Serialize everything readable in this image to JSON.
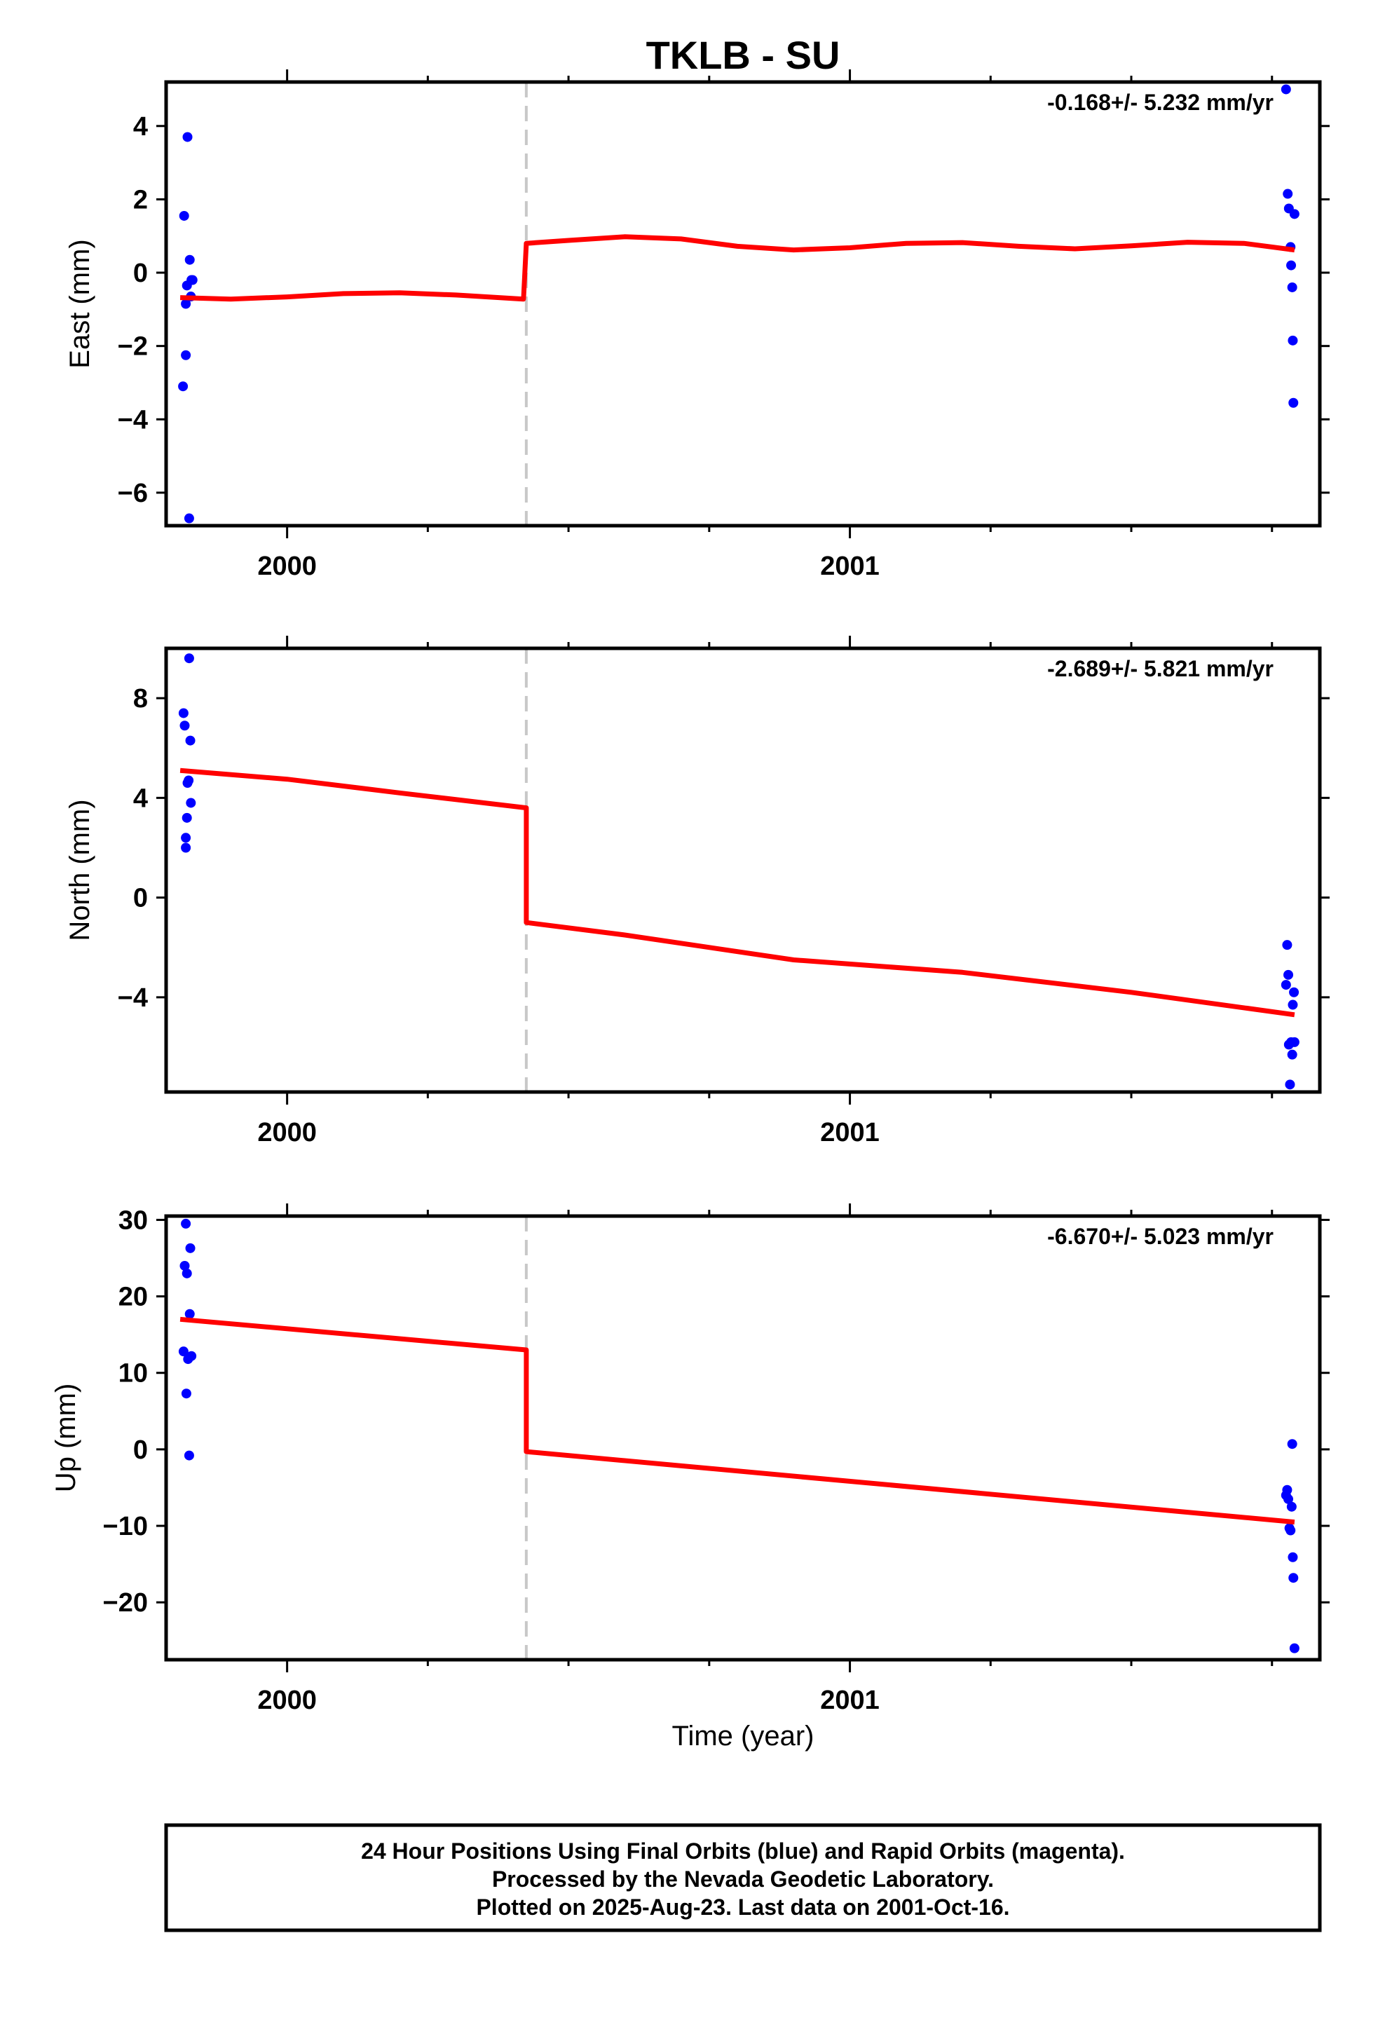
{
  "title": "TKLB - SU",
  "colors": {
    "data": "#0000ff",
    "model": "#ff0000",
    "break": "#c8c8c8",
    "frame": "#000000"
  },
  "chart_data": [
    {
      "type": "scatter",
      "ylabel": "East (mm)",
      "xlabel": "",
      "rate_text": "-0.168+/- 5.232 mm/yr",
      "xlim": [
        1999.785,
        2001.835
      ],
      "ylim": [
        -6.9,
        5.2
      ],
      "yticks": [
        -6,
        -4,
        -2,
        0,
        2,
        4
      ],
      "ytick_labels": [
        "−6",
        "−4",
        "−2",
        "0",
        "2",
        "4"
      ],
      "xticks": [
        2000,
        2001
      ],
      "xtick_labels": [
        "2000",
        "2001"
      ],
      "minor_xticks": [
        2000.25,
        2000.5,
        2000.75,
        2001.25,
        2001.5,
        2001.75
      ],
      "break_x": 2000.425,
      "series": [
        {
          "kind": "points",
          "x": [
            1999.815,
            1999.817,
            1999.82,
            1999.82,
            1999.822,
            1999.823,
            1999.826,
            1999.827,
            1999.829,
            1999.83,
            1999.832
          ],
          "y": [
            -3.1,
            1.55,
            -0.85,
            -2.25,
            -0.35,
            3.7,
            -6.7,
            0.35,
            -0.65,
            -0.2,
            -0.2
          ]
        },
        {
          "kind": "points",
          "x": [
            2001.775,
            2001.778,
            2001.78,
            2001.783,
            2001.784,
            2001.786,
            2001.787,
            2001.788,
            2001.79
          ],
          "y": [
            5.0,
            2.15,
            1.75,
            0.7,
            0.2,
            -0.4,
            -1.85,
            -3.55,
            1.6
          ]
        },
        {
          "kind": "model",
          "x": [
            1999.81,
            1999.9,
            2000.0,
            2000.1,
            2000.2,
            2000.3,
            2000.42,
            2000.425,
            2000.5,
            2000.6,
            2000.7,
            2000.8,
            2000.9,
            2001.0,
            2001.1,
            2001.2,
            2001.3,
            2001.4,
            2001.5,
            2001.6,
            2001.7,
            2001.79
          ],
          "y": [
            -0.68,
            -0.72,
            -0.66,
            -0.57,
            -0.55,
            -0.61,
            -0.72,
            0.8,
            0.88,
            0.98,
            0.92,
            0.72,
            0.62,
            0.68,
            0.8,
            0.82,
            0.72,
            0.65,
            0.73,
            0.83,
            0.8,
            0.62
          ]
        }
      ]
    },
    {
      "type": "scatter",
      "ylabel": "North (mm)",
      "xlabel": "",
      "rate_text": "-2.689+/- 5.821 mm/yr",
      "xlim": [
        1999.785,
        2001.835
      ],
      "ylim": [
        -7.8,
        10.0
      ],
      "yticks": [
        -4,
        0,
        4,
        8
      ],
      "ytick_labels": [
        "−4",
        "0",
        "4",
        "8"
      ],
      "xticks": [
        2000,
        2001
      ],
      "xtick_labels": [
        "2000",
        "2001"
      ],
      "minor_xticks": [
        2000.25,
        2000.5,
        2000.75,
        2001.25,
        2001.5,
        2001.75
      ],
      "break_x": 2000.425,
      "series": [
        {
          "kind": "points",
          "x": [
            1999.816,
            1999.818,
            1999.82,
            1999.82,
            1999.822,
            1999.823,
            1999.825,
            1999.826,
            1999.828,
            1999.829
          ],
          "y": [
            7.4,
            6.9,
            2.0,
            2.4,
            3.2,
            4.6,
            4.7,
            9.6,
            6.3,
            3.8
          ]
        },
        {
          "kind": "points",
          "x": [
            2001.775,
            2001.777,
            2001.779,
            2001.78,
            2001.782,
            2001.784,
            2001.786,
            2001.787,
            2001.789,
            2001.79
          ],
          "y": [
            -3.5,
            -1.9,
            -3.1,
            -5.9,
            -7.5,
            -5.8,
            -6.3,
            -4.3,
            -3.8,
            -5.8
          ]
        },
        {
          "kind": "model",
          "x": [
            1999.81,
            2000.0,
            2000.2,
            2000.425,
            2000.425,
            2000.6,
            2000.9,
            2001.2,
            2001.5,
            2001.79
          ],
          "y": [
            5.1,
            4.75,
            4.2,
            3.6,
            -1.0,
            -1.5,
            -2.5,
            -3.0,
            -3.8,
            -4.7
          ]
        }
      ]
    },
    {
      "type": "scatter",
      "ylabel": "Up (mm)",
      "xlabel": "Time (year)",
      "rate_text": "-6.670+/- 5.023 mm/yr",
      "xlim": [
        1999.785,
        2001.835
      ],
      "ylim": [
        -27.5,
        30.5
      ],
      "yticks": [
        -20,
        -10,
        0,
        10,
        20,
        30
      ],
      "ytick_labels": [
        "−20",
        "−10",
        "0",
        "10",
        "20",
        "30"
      ],
      "xticks": [
        2000,
        2001
      ],
      "xtick_labels": [
        "2000",
        "2001"
      ],
      "minor_xticks": [
        2000.25,
        2000.5,
        2000.75,
        2001.25,
        2001.5,
        2001.75
      ],
      "break_x": 2000.425,
      "series": [
        {
          "kind": "points",
          "x": [
            1999.816,
            1999.818,
            1999.82,
            1999.821,
            1999.822,
            1999.824,
            1999.826,
            1999.827,
            1999.828,
            1999.83
          ],
          "y": [
            12.8,
            24.0,
            29.5,
            7.3,
            23.0,
            11.8,
            -0.8,
            17.7,
            26.3,
            12.2
          ]
        },
        {
          "kind": "points",
          "x": [
            2001.775,
            2001.777,
            2001.779,
            2001.781,
            2001.783,
            2001.785,
            2001.786,
            2001.787,
            2001.788,
            2001.79
          ],
          "y": [
            -6.0,
            -5.3,
            -6.5,
            -10.3,
            -10.6,
            -7.5,
            0.7,
            -14.1,
            -16.8,
            -26.0
          ]
        },
        {
          "kind": "model",
          "x": [
            1999.81,
            2000.425,
            2000.425,
            2001.79
          ],
          "y": [
            17.0,
            13.0,
            -0.3,
            -9.5
          ]
        }
      ]
    }
  ],
  "footer": {
    "line1": "24 Hour Positions Using Final Orbits (blue) and Rapid Orbits (magenta).",
    "line2": "Processed by the Nevada Geodetic Laboratory.",
    "line3": "Plotted on 2025-Aug-23. Last data on 2001-Oct-16."
  }
}
